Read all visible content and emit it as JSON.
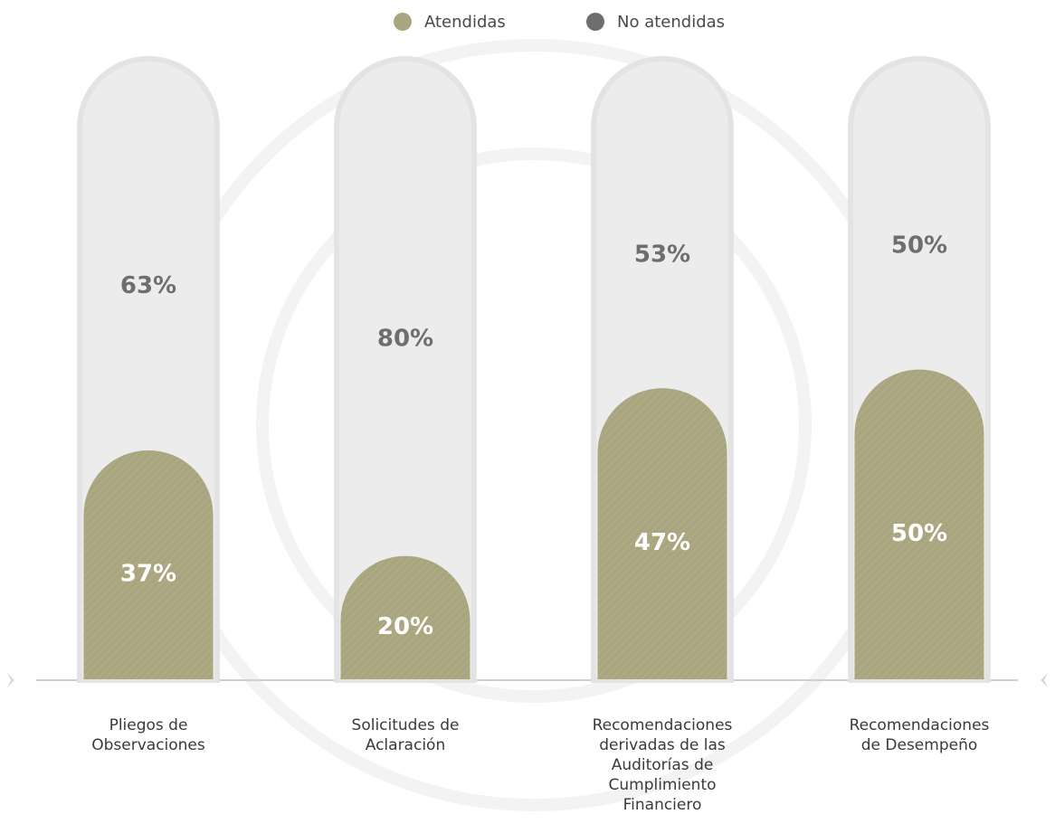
{
  "chart_data": {
    "type": "stacked-rounded-bar",
    "categories": [
      "Pliegos de\nObservaciones",
      "Solicitudes de\nAclaración",
      "Recomendaciones\nderivadas de las\nAuditorías de\nCumplimiento\nFinanciero",
      "Recomendaciones\nde Desempeño"
    ],
    "series": [
      {
        "name": "Atendidas",
        "color": "#a9a67f",
        "values": [
          37,
          20,
          47,
          50
        ],
        "value_labels": [
          "37%",
          "20%",
          "47%",
          "50%"
        ]
      },
      {
        "name": "No atendidas",
        "color": "#6e6e6e",
        "values": [
          63,
          80,
          53,
          50
        ],
        "value_labels": [
          "63%",
          "80%",
          "53%",
          "50%"
        ]
      }
    ],
    "legend": "top"
  }
}
